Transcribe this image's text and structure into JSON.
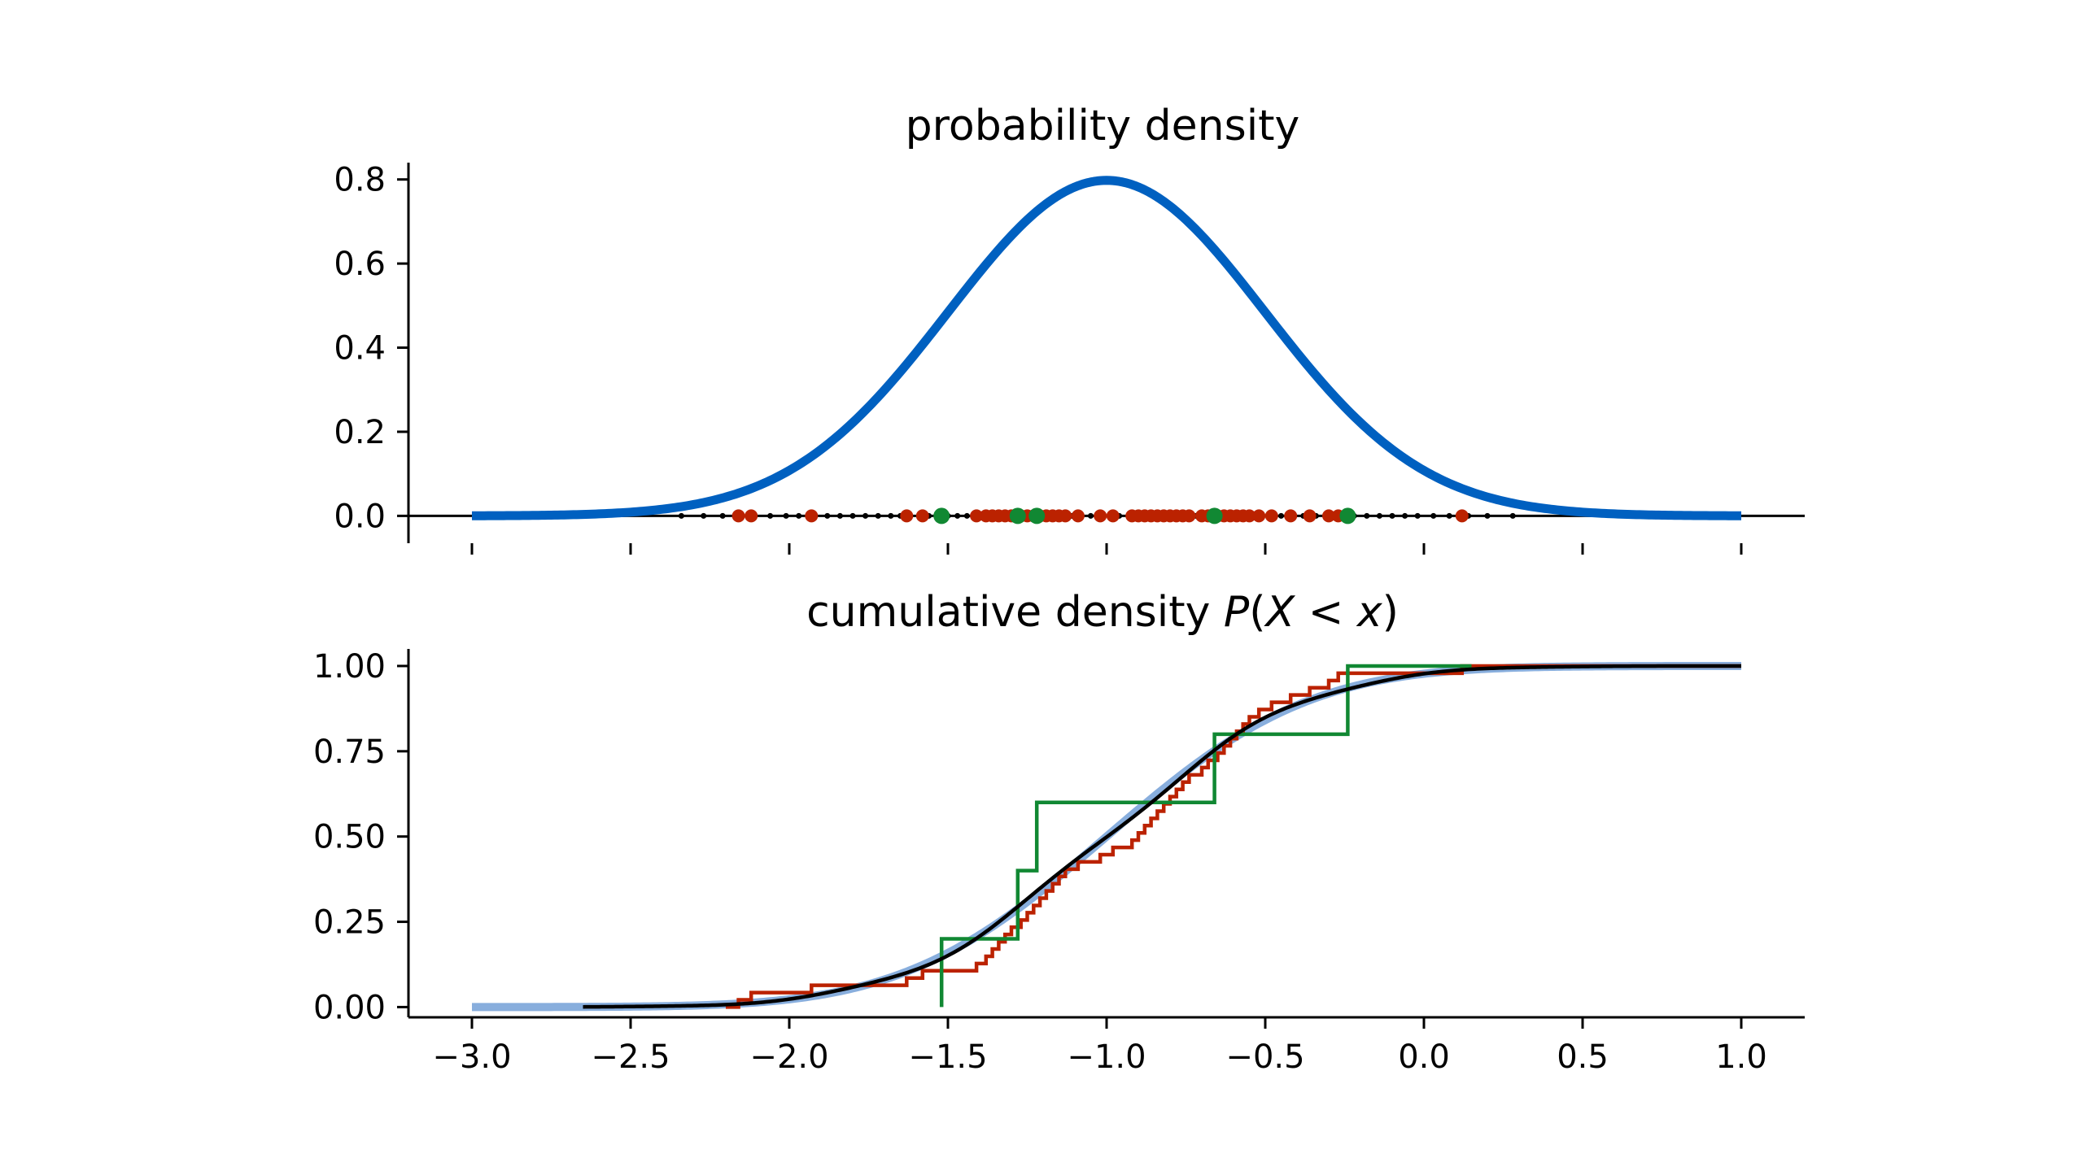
{
  "colors": {
    "pdf": "#0060C0",
    "cdf_true": "#88AEDD",
    "sample_large": "#000000",
    "sample_medium": "#BB2200",
    "sample_small": "#118833",
    "axis": "#000000"
  },
  "chart_data": [
    {
      "type": "line",
      "title": "probability density",
      "xlim": [
        -3.2,
        1.2
      ],
      "ylim": [
        -0.065,
        0.84
      ],
      "yticks": [
        0.0,
        0.2,
        0.4,
        0.6,
        0.8
      ],
      "ytick_labels": [
        "0.0",
        "0.2",
        "0.4",
        "0.6",
        "0.8"
      ],
      "xticks": [
        -3.0,
        -2.5,
        -2.0,
        -1.5,
        -1.0,
        -0.5,
        0.0,
        0.5,
        1.0
      ],
      "x_tick_labels_shown": false,
      "grid": false,
      "distribution": {
        "name": "normal",
        "mean": -1.0,
        "std": 0.5
      },
      "pdf_range": [
        -3.0,
        1.0
      ],
      "series": [
        {
          "role": "pdf",
          "color": "#0060C0"
        },
        {
          "role": "samples-large",
          "color": "#000000",
          "points": [
            -2.34,
            -2.27,
            -2.21,
            -2.17,
            -2.12,
            -2.06,
            -2.01,
            -1.97,
            -1.92,
            -1.88,
            -1.84,
            -1.8,
            -1.76,
            -1.72,
            -1.68,
            -1.65,
            -1.62,
            -1.59,
            -1.56,
            -1.53,
            -1.5,
            -1.47,
            -1.44,
            -1.41,
            -1.38,
            -1.35,
            -1.32,
            -1.29,
            -1.26,
            -1.23,
            -1.2,
            -1.17,
            -1.14,
            -1.11,
            -1.08,
            -1.05,
            -1.02,
            -0.99,
            -0.96,
            -0.93,
            -0.9,
            -0.87,
            -0.84,
            -0.81,
            -0.78,
            -0.75,
            -0.72,
            -0.69,
            -0.66,
            -0.63,
            -0.6,
            -0.57,
            -0.54,
            -0.51,
            -0.48,
            -0.45,
            -0.42,
            -0.38,
            -0.34,
            -0.3,
            -0.26,
            -0.22,
            -0.18,
            -0.14,
            -0.1,
            -0.06,
            -0.02,
            0.03,
            0.08,
            0.14,
            0.2,
            0.28
          ]
        },
        {
          "role": "samples-medium",
          "color": "#BB2200",
          "points": [
            -2.16,
            -2.12,
            -1.93,
            -1.63,
            -1.58,
            -1.41,
            -1.38,
            -1.36,
            -1.34,
            -1.32,
            -1.3,
            -1.27,
            -1.25,
            -1.23,
            -1.21,
            -1.19,
            -1.17,
            -1.15,
            -1.13,
            -1.09,
            -1.02,
            -0.98,
            -0.92,
            -0.9,
            -0.88,
            -0.86,
            -0.84,
            -0.82,
            -0.8,
            -0.78,
            -0.76,
            -0.74,
            -0.7,
            -0.68,
            -0.65,
            -0.63,
            -0.61,
            -0.59,
            -0.57,
            -0.55,
            -0.52,
            -0.48,
            -0.42,
            -0.36,
            -0.3,
            -0.27,
            0.12
          ]
        },
        {
          "role": "samples-small",
          "color": "#118833",
          "points": [
            -1.52,
            -1.28,
            -1.22,
            -0.66,
            -0.24
          ]
        }
      ]
    },
    {
      "type": "line",
      "title_prefix": "cumulative density ",
      "title_math": {
        "P": "P",
        "open": "(",
        "X": "X",
        "lt": " < ",
        "x": "x",
        "close": ")"
      },
      "xlim": [
        -3.2,
        1.2
      ],
      "ylim": [
        -0.03,
        1.05
      ],
      "yticks": [
        0.0,
        0.25,
        0.5,
        0.75,
        1.0
      ],
      "ytick_labels": [
        "0.00",
        "0.25",
        "0.50",
        "0.75",
        "1.00"
      ],
      "xticks": [
        -3.0,
        -2.5,
        -2.0,
        -1.5,
        -1.0,
        -0.5,
        0.0,
        0.5,
        1.0
      ],
      "xtick_labels": [
        "−3.0",
        "−2.5",
        "−2.0",
        "−1.5",
        "−1.0",
        "−0.5",
        "0.0",
        "0.5",
        "1.0"
      ],
      "grid": false,
      "series": [
        {
          "role": "cdf-true",
          "color": "#88AEDD"
        },
        {
          "role": "ecdf-medium",
          "color": "#BB2200"
        },
        {
          "role": "ecdf-small",
          "color": "#118833"
        },
        {
          "role": "ecdf-large",
          "color": "#000000"
        }
      ]
    }
  ]
}
